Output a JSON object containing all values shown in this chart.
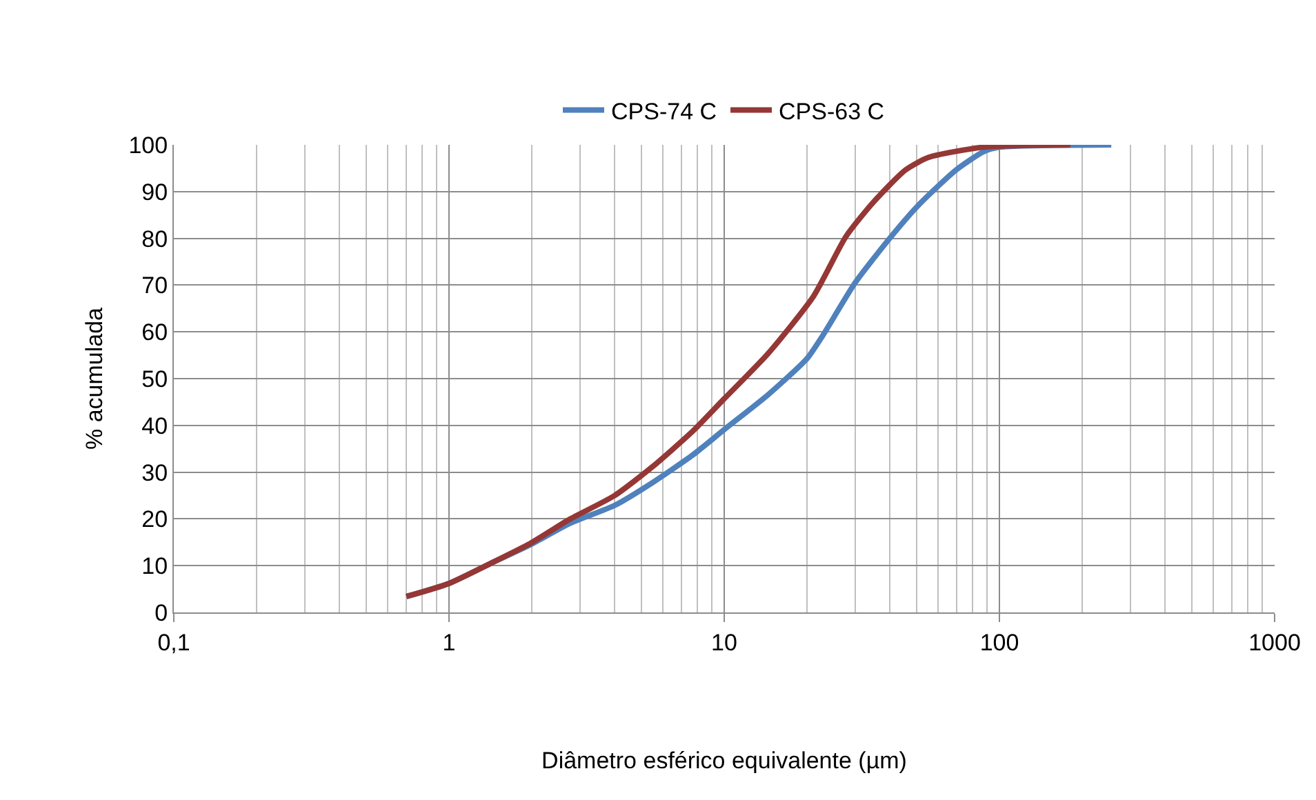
{
  "chart_data": {
    "type": "line",
    "xlabel": "Diâmetro esférico equivalente (µm)",
    "ylabel": "% acumulada",
    "log": "x",
    "grid": true,
    "legend": "top",
    "marker": "none",
    "line_style": "solid",
    "xlim": [
      0.1,
      1000
    ],
    "xticks": [
      {
        "value": 0.1,
        "label": "0,1"
      },
      1,
      10,
      100,
      1000
    ],
    "ylim": [
      0,
      100
    ],
    "yticks": [
      0,
      10,
      20,
      30,
      40,
      50,
      60,
      70,
      80,
      90,
      100
    ],
    "series": [
      {
        "name": "CPS-74 C",
        "color": "#4f81bd",
        "x": [
          0.7,
          1,
          1.43,
          1.98,
          2.74,
          4,
          5.5,
          7.7,
          10,
          14.4,
          20,
          22.8,
          29.9,
          39.8,
          51,
          69.5,
          87.4,
          100,
          255
        ],
        "values": [
          3.4,
          6.2,
          10.6,
          14.5,
          19,
          22.9,
          27.8,
          33.7,
          39.1,
          46.5,
          54.3,
          59.2,
          70.5,
          79.9,
          87.2,
          94.6,
          98.5,
          99.5,
          100
        ]
      },
      {
        "name": "CPS-63 C",
        "color": "#953735",
        "x": [
          0.7,
          1,
          1.43,
          1.98,
          2.74,
          4,
          5.5,
          7.7,
          10,
          14.4,
          21.1,
          27.7,
          34.8,
          45.5,
          55.2,
          87.4,
          181
        ],
        "values": [
          3.4,
          6.2,
          10.6,
          14.8,
          19.9,
          25,
          31.2,
          38.8,
          45.7,
          55.3,
          67.6,
          80.4,
          87.7,
          94.6,
          97.3,
          99.5,
          100
        ]
      }
    ]
  }
}
